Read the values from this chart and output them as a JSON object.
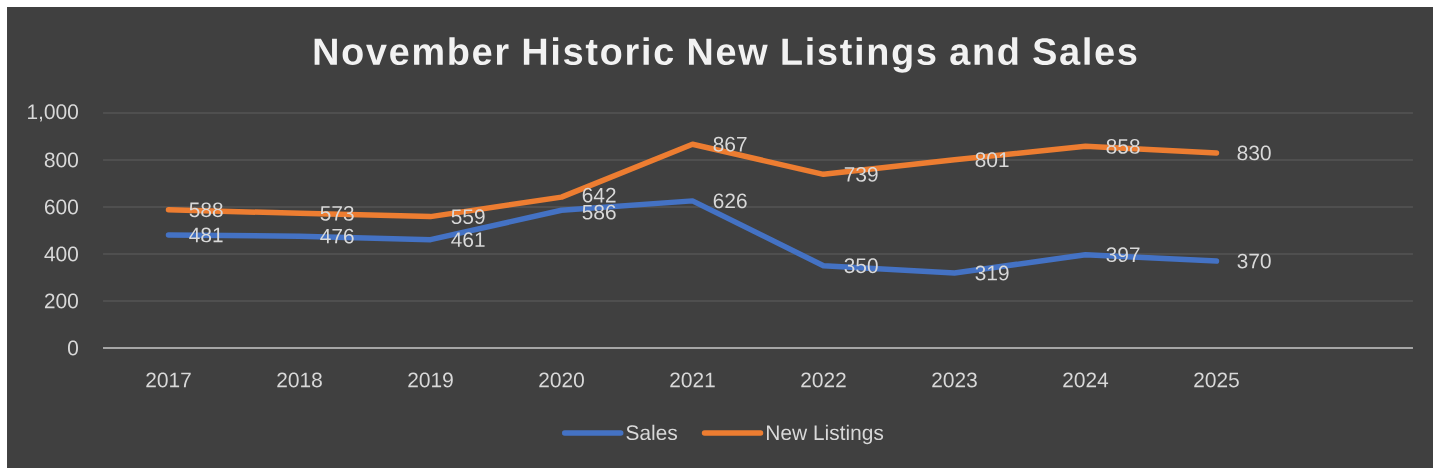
{
  "chart_data": {
    "type": "line",
    "title": "November Historic New Listings and Sales",
    "categories": [
      "2017",
      "2018",
      "2019",
      "2020",
      "2021",
      "2022",
      "2023",
      "2024",
      "2025",
      null
    ],
    "series": [
      {
        "name": "Sales",
        "color": "#4472c4",
        "values": [
          481,
          476,
          461,
          586,
          626,
          350,
          319,
          397,
          370,
          null
        ]
      },
      {
        "name": "New Listings",
        "color": "#ed7d31",
        "values": [
          588,
          573,
          559,
          642,
          867,
          739,
          801,
          858,
          830,
          null
        ]
      }
    ],
    "ylim": [
      0,
      1000
    ],
    "yticks": [
      0,
      200,
      400,
      600,
      800,
      {
        "value": 1000,
        "label": "1,000"
      }
    ],
    "grid": "y",
    "legend": "bottom",
    "data_labels": true,
    "line_style": "solid"
  }
}
